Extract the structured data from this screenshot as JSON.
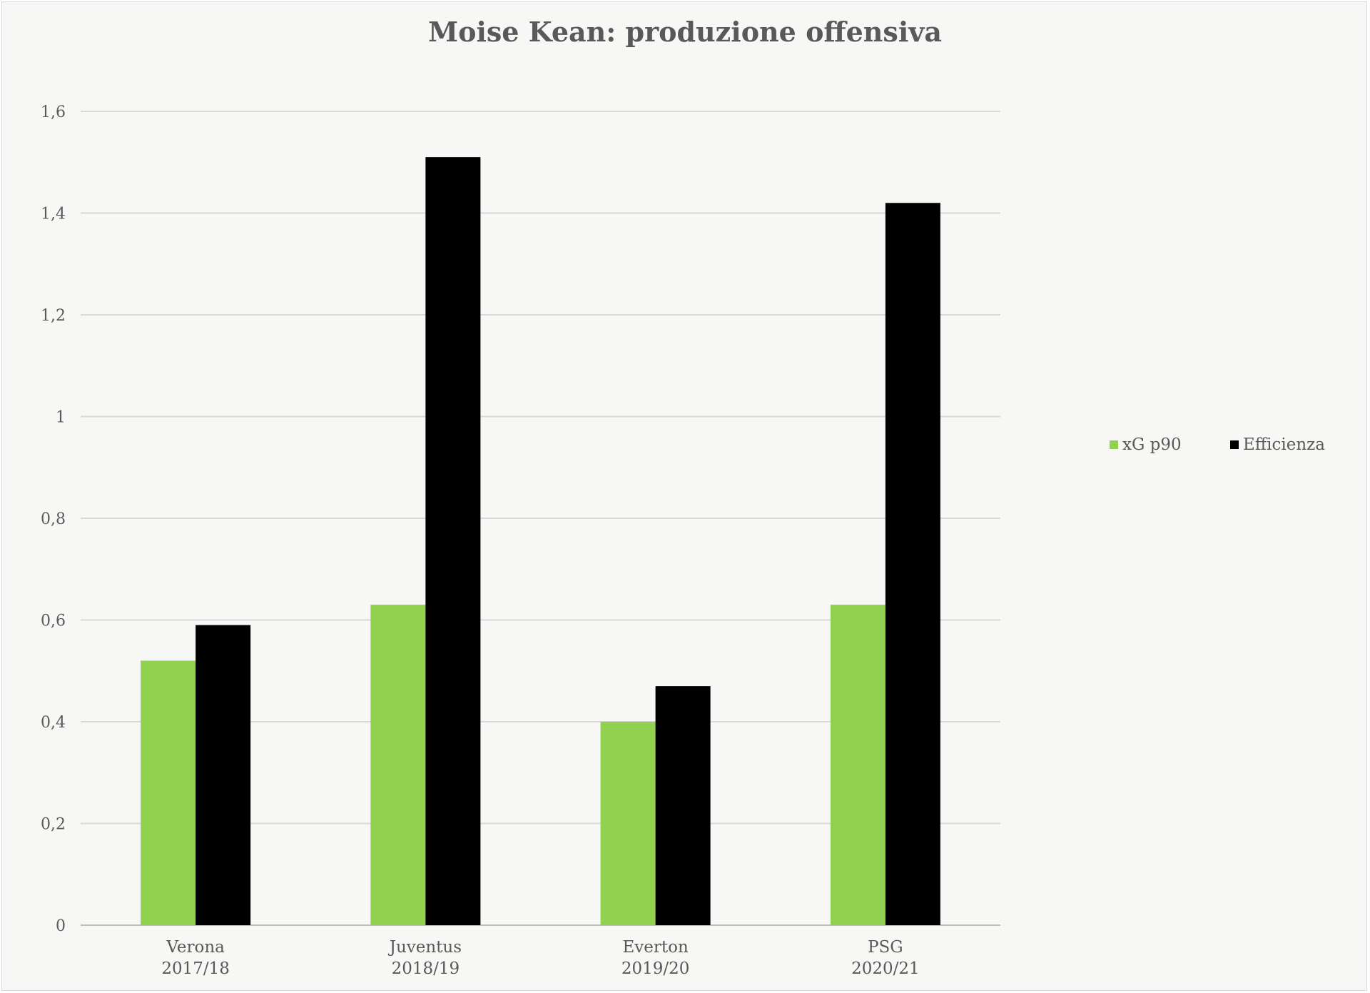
{
  "chart_data": {
    "type": "bar",
    "title": "Moise Kean: produzione offensiva",
    "xlabel": "",
    "ylabel": "",
    "categories": [
      [
        "Verona",
        "2017/18"
      ],
      [
        "Juventus",
        "2018/19"
      ],
      [
        "Everton",
        "2019/20"
      ],
      [
        "PSG",
        "2020/21"
      ]
    ],
    "series": [
      {
        "name": "xG p90",
        "color": "#92d050",
        "values": [
          0.52,
          0.63,
          0.4,
          0.63
        ]
      },
      {
        "name": "Efficienza",
        "color": "#000000",
        "values": [
          0.59,
          1.51,
          0.47,
          1.42
        ]
      }
    ],
    "ylim": [
      0,
      1.6
    ],
    "yticks": [
      0,
      0.2,
      0.4,
      0.6,
      0.8,
      1,
      1.2,
      1.4,
      1.6
    ],
    "ytick_labels": [
      "0",
      "0,2",
      "0,4",
      "0,6",
      "0,8",
      "1",
      "1,2",
      "1,4",
      "1,6"
    ],
    "grid": true,
    "legend_position": "right"
  }
}
